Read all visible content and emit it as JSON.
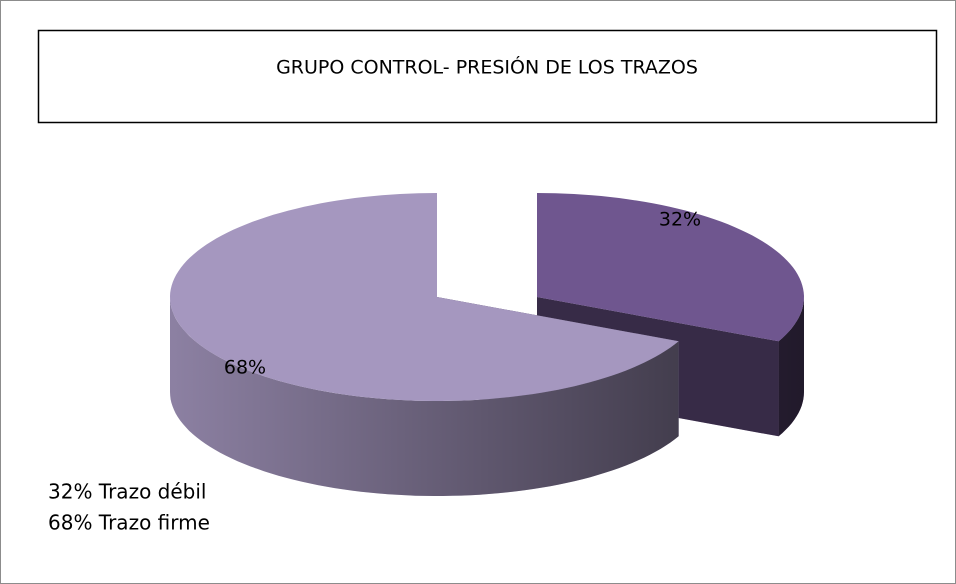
{
  "chart_data": {
    "type": "pie",
    "title": "GRUPO CONTROL- PRESIÓN DE LOS TRAZOS",
    "categories": [
      "32% Trazo débil",
      "68% Trazo firme"
    ],
    "values": [
      32,
      68
    ],
    "value_labels": [
      "32%",
      "68%"
    ],
    "colors": [
      "#6f568f",
      "#a597bf"
    ],
    "legend": "bottom-left"
  }
}
